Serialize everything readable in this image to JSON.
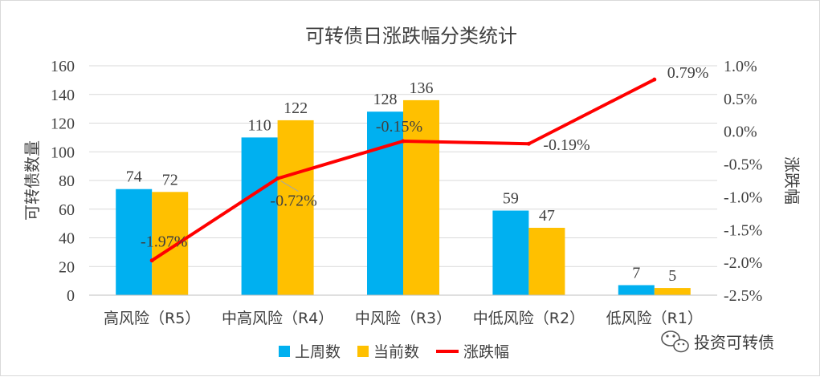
{
  "chart_data": {
    "type": "bar",
    "title": "可转债日涨跌幅分类统计",
    "ylabel": "可转债数量",
    "y2label": "涨跌幅",
    "categories": [
      "高风险（R5）",
      "中高风险（R4）",
      "中风险（R3）",
      "中低风险（R2）",
      "低风险（R1）"
    ],
    "ylim": [
      0,
      160
    ],
    "yticks": [
      "0",
      "20",
      "40",
      "60",
      "80",
      "100",
      "120",
      "140",
      "160"
    ],
    "y2lim": [
      -2.5,
      1.0
    ],
    "y2ticks": [
      "-2.5%",
      "-2.0%",
      "-1.5%",
      "-1.0%",
      "-0.5%",
      "0.0%",
      "0.5%",
      "1.0%"
    ],
    "grid": true,
    "legend_position": "bottom",
    "series": [
      {
        "name": "上周数",
        "type": "bar",
        "color": "#00b0f0",
        "values": [
          74,
          110,
          128,
          59,
          7
        ],
        "labels": [
          "74",
          "110",
          "128",
          "59",
          "7"
        ]
      },
      {
        "name": "当前数",
        "type": "bar",
        "color": "#ffc000",
        "values": [
          72,
          122,
          136,
          47,
          5
        ],
        "labels": [
          "72",
          "122",
          "136",
          "47",
          "5"
        ]
      },
      {
        "name": "涨跌幅",
        "type": "line",
        "axis": "right",
        "color": "#ff0000",
        "values": [
          -1.97,
          -0.72,
          -0.15,
          -0.19,
          0.79
        ],
        "labels": [
          "-1.97%",
          "-0.72%",
          "-0.15%",
          "-0.19%",
          "0.79%"
        ]
      }
    ]
  },
  "watermark": {
    "icon": "wechat-icon",
    "text": "投资可转债"
  }
}
